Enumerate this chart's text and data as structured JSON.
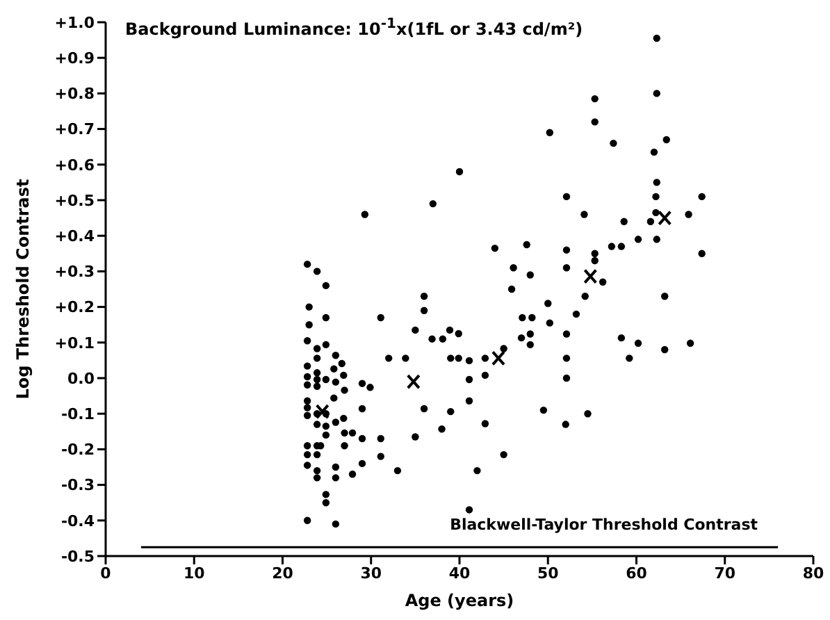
{
  "chart_data": {
    "type": "scatter",
    "title": "Background Luminance: 10$^{-1}$x(1fL or 3.43 cd/m²)",
    "xlabel": "Age (years)",
    "ylabel": "Log Threshold Contrast",
    "xlim": [
      0,
      80
    ],
    "xticks": [
      0,
      10,
      20,
      30,
      40,
      50,
      60,
      70,
      80
    ],
    "ylim": [
      -0.5,
      1.0
    ],
    "yticks": [
      {
        "value": -0.5,
        "label": "-0.5"
      },
      {
        "value": -0.4,
        "label": "-0.4"
      },
      {
        "value": -0.3,
        "label": "-0.3"
      },
      {
        "value": -0.2,
        "label": "-0.2"
      },
      {
        "value": -0.1,
        "label": "-0.1"
      },
      {
        "value": 0,
        "label": "0.0"
      },
      {
        "value": 0.1,
        "label": "+0.1"
      },
      {
        "value": 0.2,
        "label": "+0.2"
      },
      {
        "value": 0.3,
        "label": "+0.3"
      },
      {
        "value": 0.4,
        "label": "+0.4"
      },
      {
        "value": 0.5,
        "label": "+0.5"
      },
      {
        "value": 0.6,
        "label": "+0.6"
      },
      {
        "value": 0.7,
        "label": "+0.7"
      },
      {
        "value": 0.8,
        "label": "+0.8"
      },
      {
        "value": 0.9,
        "label": "+0.9"
      },
      {
        "value": 1.0,
        "label": "+1.0"
      }
    ],
    "grid": false,
    "legend": false,
    "series": [
      {
        "marker": "circle",
        "color": "#000000",
        "x": [
          22.8,
          23.9,
          24.9,
          23.0,
          24.9,
          31.1,
          36.0,
          36.0,
          23.0,
          22.8,
          35.0,
          36.9,
          38.1,
          38.9,
          39.9,
          23.9,
          24.9,
          26.0,
          23.9,
          26.7,
          22.8,
          25.8,
          32.0,
          33.9,
          39.0,
          39.9,
          41.1,
          42.9,
          45.0,
          22.8,
          23.9,
          23.9,
          24.9,
          26.0,
          26.9,
          22.8,
          23.9,
          29.0,
          29.9,
          27.0,
          41.1,
          42.9,
          25.8,
          22.8,
          22.8,
          29.0,
          36.0,
          41.1,
          39.0,
          22.8,
          23.9,
          24.9,
          23.9,
          26.9,
          26.0,
          24.9,
          24.9,
          27.0,
          27.9,
          29.0,
          31.1,
          35.0,
          38.0,
          42.9,
          22.8,
          23.9,
          24.3,
          22.8,
          23.9,
          27.0,
          31.1,
          45.0,
          29.0,
          22.8,
          23.9,
          26.0,
          27.9,
          33.0,
          42.0,
          23.9,
          26.0,
          24.9,
          24.9,
          41.1,
          22.8,
          26.0,
          50.2,
          55.3,
          57.4,
          40.0,
          37.0,
          52.1,
          54.1,
          58.6,
          61.6,
          62.2,
          62.2,
          62.3,
          60.2,
          62.3,
          57.2,
          58.3,
          44.0,
          47.6,
          52.1,
          55.3,
          55.3,
          46.1,
          48.0,
          52.1,
          56.2,
          45.9,
          54.2,
          63.2,
          50.0,
          53.2,
          47.1,
          48.2,
          50.2,
          47.0,
          48.0,
          48.0,
          52.1,
          58.3,
          60.2,
          63.2,
          52.1,
          59.2,
          62.3,
          62.3,
          55.3,
          63.4,
          62.0,
          67.4,
          65.9,
          67.4,
          66.1,
          29.3,
          49.5,
          52.0,
          54.5,
          52.1
        ],
        "values": [
          0.32,
          0.3,
          0.26,
          0.2,
          0.17,
          0.17,
          0.23,
          0.19,
          0.15,
          0.105,
          0.135,
          0.11,
          0.11,
          0.135,
          0.125,
          0.083,
          0.094,
          0.064,
          0.056,
          0.041,
          0.034,
          0.026,
          0.056,
          0.056,
          0.056,
          0.056,
          0.049,
          0.056,
          0.083,
          0.004,
          0.015,
          -0.004,
          -0.004,
          -0.011,
          0.008,
          -0.019,
          -0.023,
          -0.015,
          -0.026,
          -0.034,
          -0.004,
          0.008,
          -0.056,
          -0.064,
          -0.083,
          -0.086,
          -0.086,
          -0.064,
          -0.094,
          -0.105,
          -0.1,
          -0.1,
          -0.13,
          -0.113,
          -0.124,
          -0.135,
          -0.16,
          -0.154,
          -0.154,
          -0.17,
          -0.17,
          -0.165,
          -0.143,
          -0.128,
          -0.19,
          -0.19,
          -0.19,
          -0.215,
          -0.215,
          -0.19,
          -0.22,
          -0.215,
          -0.24,
          -0.245,
          -0.26,
          -0.25,
          -0.27,
          -0.26,
          -0.26,
          -0.28,
          -0.28,
          -0.327,
          -0.35,
          -0.37,
          -0.4,
          -0.41,
          0.69,
          0.72,
          0.66,
          0.58,
          0.49,
          0.51,
          0.46,
          0.44,
          0.44,
          0.465,
          0.51,
          0.55,
          0.39,
          0.39,
          0.37,
          0.37,
          0.365,
          0.375,
          0.36,
          0.35,
          0.33,
          0.31,
          0.29,
          0.31,
          0.27,
          0.25,
          0.23,
          0.23,
          0.21,
          0.18,
          0.17,
          0.17,
          0.155,
          0.113,
          0.124,
          0.094,
          0.124,
          0.113,
          0.098,
          0.08,
          0.056,
          0.056,
          0.955,
          0.8,
          0.785,
          0.67,
          0.635,
          0.51,
          0.46,
          0.35,
          0.098,
          0.46,
          -0.09,
          -0.13,
          -0.1,
          0.0
        ]
      },
      {
        "marker": "cross",
        "color": "#000000",
        "x": [
          24.5,
          34.8,
          44.4,
          54.8,
          63.2
        ],
        "values": [
          -0.094,
          -0.01,
          0.056,
          0.286,
          0.45
        ]
      },
      {
        "type": "line",
        "name": "Blackwell-Taylor Threshold Contrast",
        "color": "#000000",
        "marker": "none",
        "x": [
          4,
          76
        ],
        "values": [
          -0.475,
          -0.475
        ]
      }
    ]
  }
}
